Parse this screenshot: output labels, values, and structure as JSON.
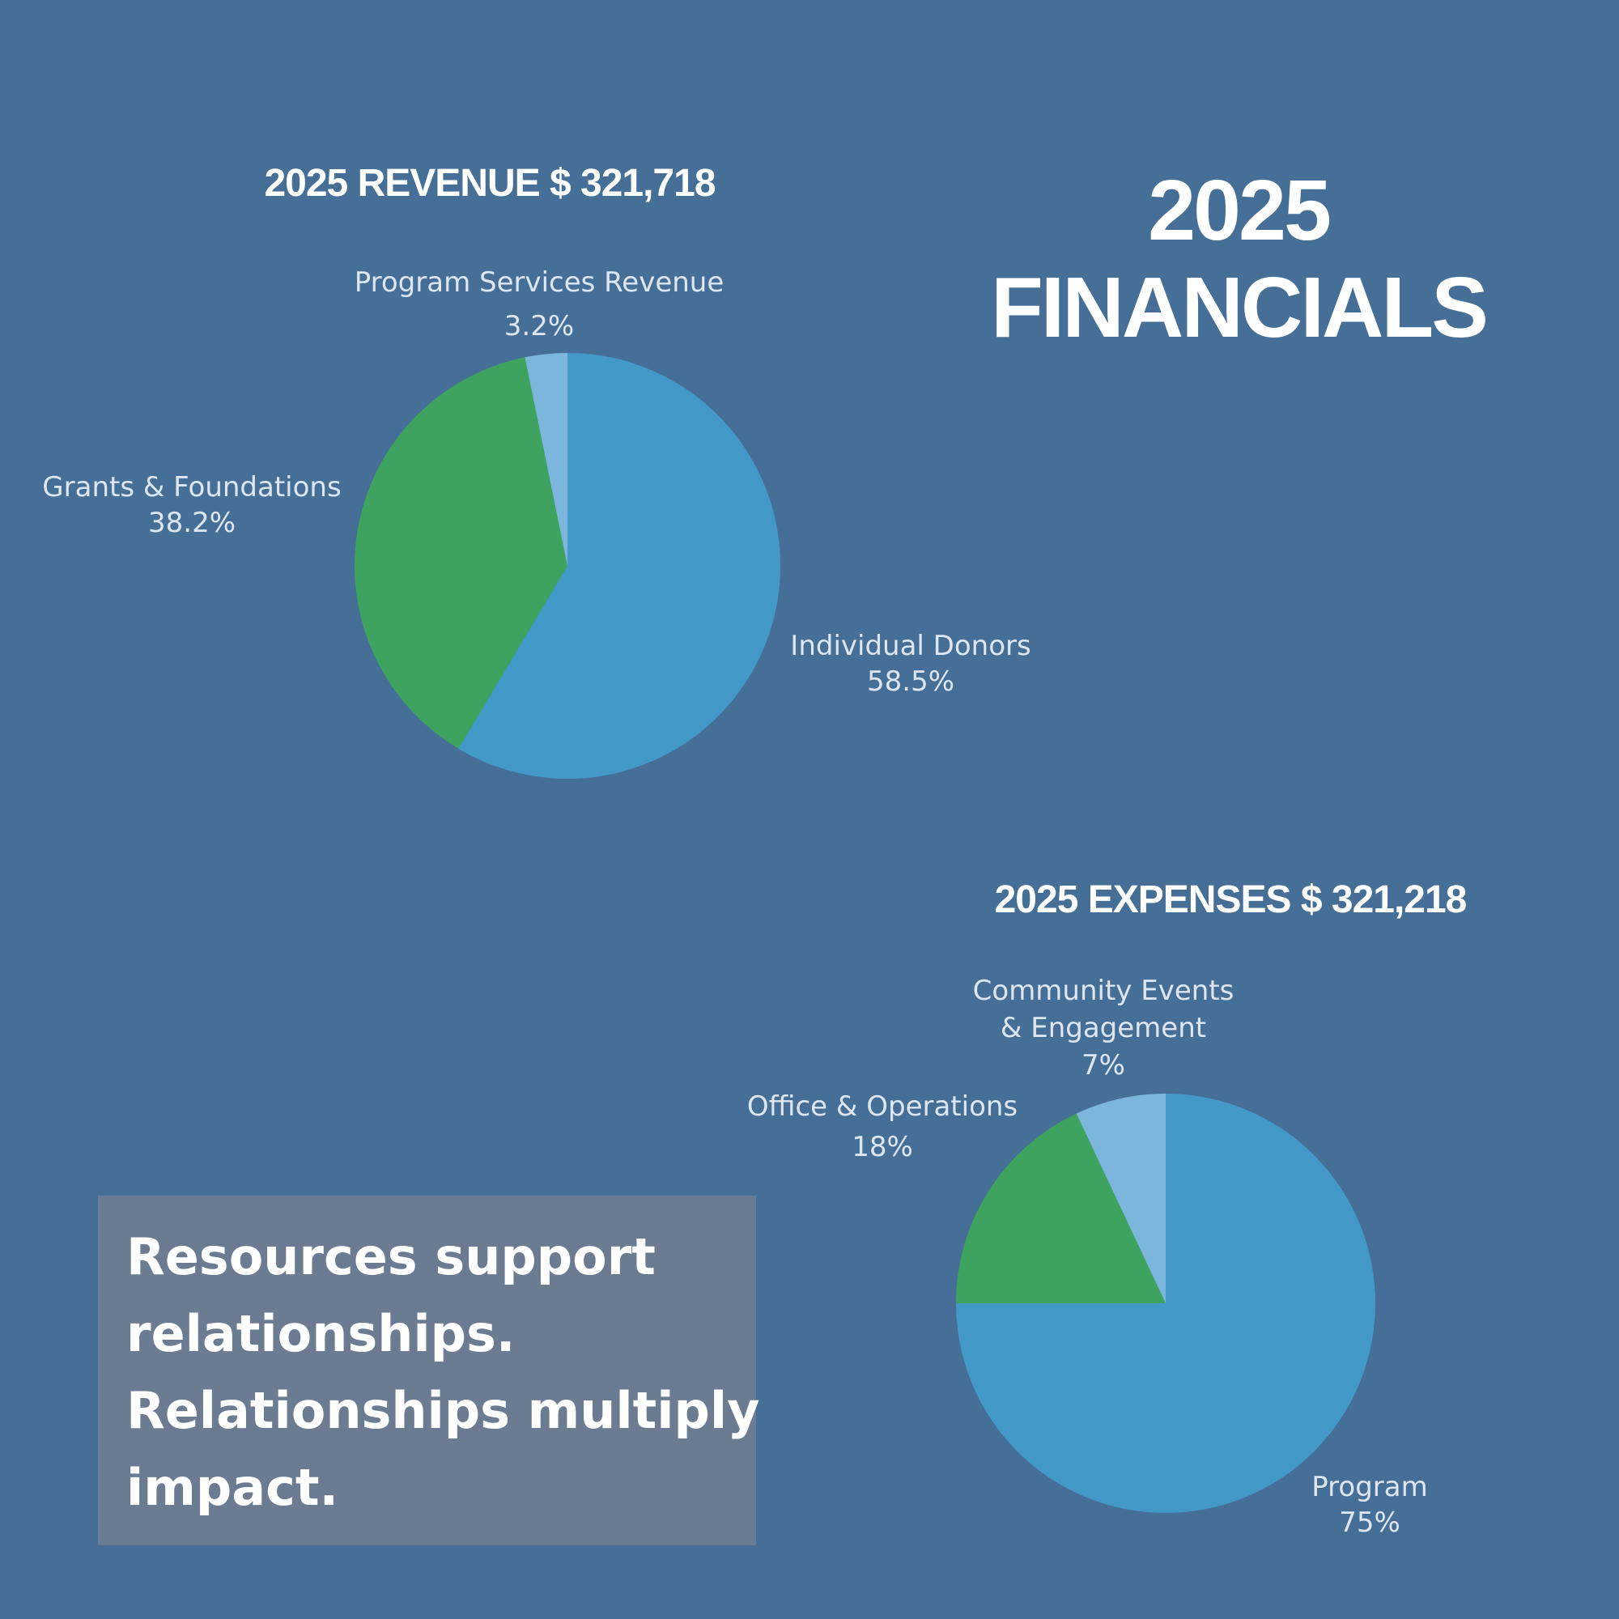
{
  "title": {
    "line1": "2025",
    "line2": "FINANCIALS"
  },
  "chart_data": [
    {
      "type": "pie",
      "title": "2025 REVENUE $ 321,718",
      "categories": [
        "Individual Donors",
        "Grants & Foundations",
        "Program Services Revenue"
      ],
      "values": [
        58.5,
        38.2,
        3.2
      ],
      "value_labels": [
        "58.5%",
        "38.2%",
        "3.2%"
      ],
      "colors": [
        "#4299c8",
        "#3ea35e",
        "#7cb6dc"
      ]
    },
    {
      "type": "pie",
      "title": "2025 EXPENSES  $ 321,218",
      "categories": [
        "Program",
        "Office & Operations",
        "Community Events & Engagement"
      ],
      "category_lines": [
        [
          "Program"
        ],
        [
          "Office & Operations"
        ],
        [
          "Community Events",
          "& Engagement"
        ]
      ],
      "values": [
        75,
        18,
        7
      ],
      "value_labels": [
        "75%",
        "18%",
        "7%"
      ],
      "colors": [
        "#4299c8",
        "#3ea35e",
        "#7cb6dc"
      ]
    }
  ],
  "quote": {
    "lines": [
      "Resources support",
      "relationships.",
      "Relationships multiply",
      "impact."
    ]
  }
}
